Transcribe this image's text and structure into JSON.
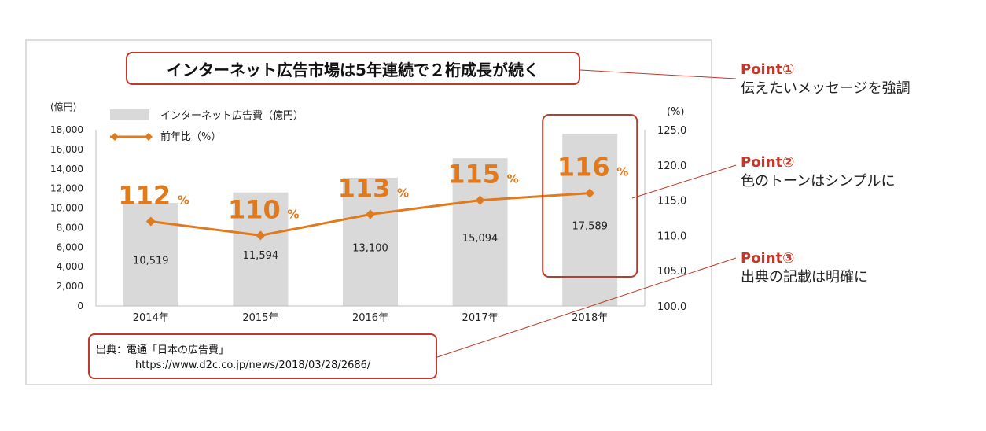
{
  "headline": "インターネット広告市場は5年連続で２桁成長が続く",
  "source": {
    "line1": "出典：電通「日本の広告費」",
    "line2": "https://www.d2c.co.jp/news/2018/03/28/2686/"
  },
  "points": [
    {
      "title": "Point①",
      "text": "伝えたいメッセージを強調"
    },
    {
      "title": "Point②",
      "text": "色のトーンはシンプルに"
    },
    {
      "title": "Point③",
      "text": "出典の記載は明確に"
    }
  ],
  "colors": {
    "bar": "#d9d9d9",
    "line": "#e07a1f",
    "accent": "#c0392b"
  },
  "chart_data": {
    "type": "bar+line",
    "categories": [
      "2014年",
      "2015年",
      "2016年",
      "2017年",
      "2018年"
    ],
    "series": [
      {
        "name": "インターネット広告費（億円）",
        "type": "bar",
        "axis": "left",
        "values": [
          10519,
          11594,
          13100,
          15094,
          17589
        ],
        "labels": [
          "10,519",
          "11,594",
          "13,100",
          "15,094",
          "17,589"
        ]
      },
      {
        "name": "前年比（%）",
        "type": "line",
        "axis": "right",
        "values": [
          112,
          110,
          113,
          115,
          116
        ],
        "labels": [
          "112",
          "110",
          "113",
          "115",
          "116"
        ],
        "label_suffix": "%"
      }
    ],
    "left_axis": {
      "unit": "(億円)",
      "min": 0,
      "max": 18000,
      "ticks": [
        "0",
        "2,000",
        "4,000",
        "6,000",
        "8,000",
        "10,000",
        "12,000",
        "14,000",
        "16,000",
        "18,000"
      ]
    },
    "right_axis": {
      "unit": "(%)",
      "min": 100,
      "max": 125,
      "ticks": [
        "100.0",
        "105.0",
        "110.0",
        "115.0",
        "120.0",
        "125.0"
      ]
    },
    "highlight_category": "2018年"
  }
}
